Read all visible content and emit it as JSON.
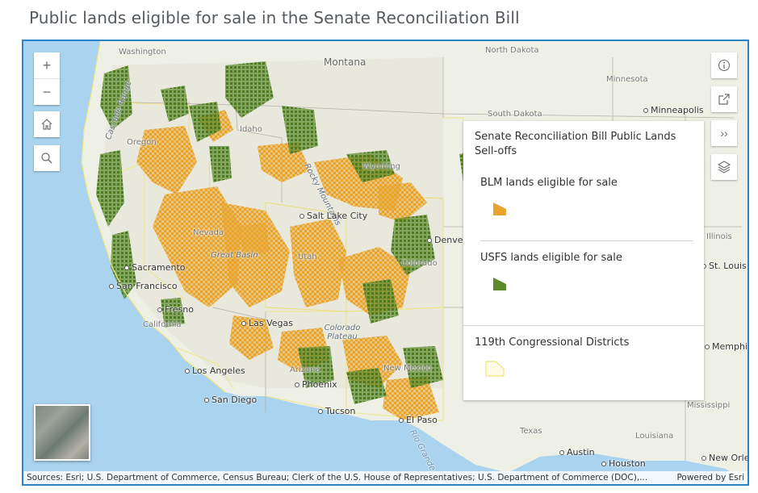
{
  "page": {
    "title": "Public lands eligible for sale in the Senate Reconciliation Bill"
  },
  "controls": {
    "zoom_in": "+",
    "zoom_out": "−",
    "home_icon": "home-icon",
    "search_icon": "search-icon",
    "info_icon": "info-icon",
    "share_icon": "share-icon",
    "expand_label": "››",
    "layers_icon": "layers-icon"
  },
  "legend": {
    "title": "Senate Reconciliation Bill Public Lands Sell-offs",
    "items": [
      {
        "label": "BLM lands eligible for sale",
        "color": "#e8a32a"
      },
      {
        "label": "USFS lands eligible for sale",
        "color": "#5a8a2a"
      }
    ],
    "districts": {
      "label": "119th Congressional Districts",
      "color": "#f0e47a"
    }
  },
  "map_labels": {
    "washington": "Washington",
    "montana": "Montana",
    "north_dakota": "North Dakota",
    "minnesota": "Minnesota",
    "south_dakota": "South Dakota",
    "minneapolis": "Minneapolis",
    "oregon": "Oregon",
    "idaho": "Idaho",
    "rocky_mountains": "Rocky Mountains",
    "wyoming": "Wyoming",
    "salt_lake_city": "Salt Lake City",
    "denver": "Denver",
    "nevada": "Nevada",
    "great_basin": "Great Basin",
    "utah": "Utah",
    "colorado": "Colorado",
    "sacramento": "Sacramento",
    "san_francisco": "San Francisco",
    "fresno": "Fresno",
    "california": "California",
    "las_vegas": "Las Vegas",
    "colorado_plateau": "Colorado Plateau",
    "los_angeles": "Los Angeles",
    "arizona": "Arizona",
    "phoenix": "Phoenix",
    "new_mexico": "New Mexico",
    "san_diego": "San Diego",
    "tucson": "Tucson",
    "el_paso": "El Paso",
    "texas": "Texas",
    "austin": "Austin",
    "houston": "Houston",
    "louisiana": "Louisiana",
    "new_orleans": "New Orlea",
    "mississippi": "Mississippi",
    "memphis": "Memphis",
    "st_louis": "St. Louis",
    "illinois": "Illinois",
    "cascade_range": "Cascade Range",
    "rio_grande": "Rio Grande"
  },
  "attribution": {
    "sources": "Sources: Esri; U.S. Department of Commerce, Census Bureau; Clerk of the U.S. House of Representatives; U.S. Department of Commerce (DOC),...",
    "powered_by": "Powered by Esri"
  }
}
